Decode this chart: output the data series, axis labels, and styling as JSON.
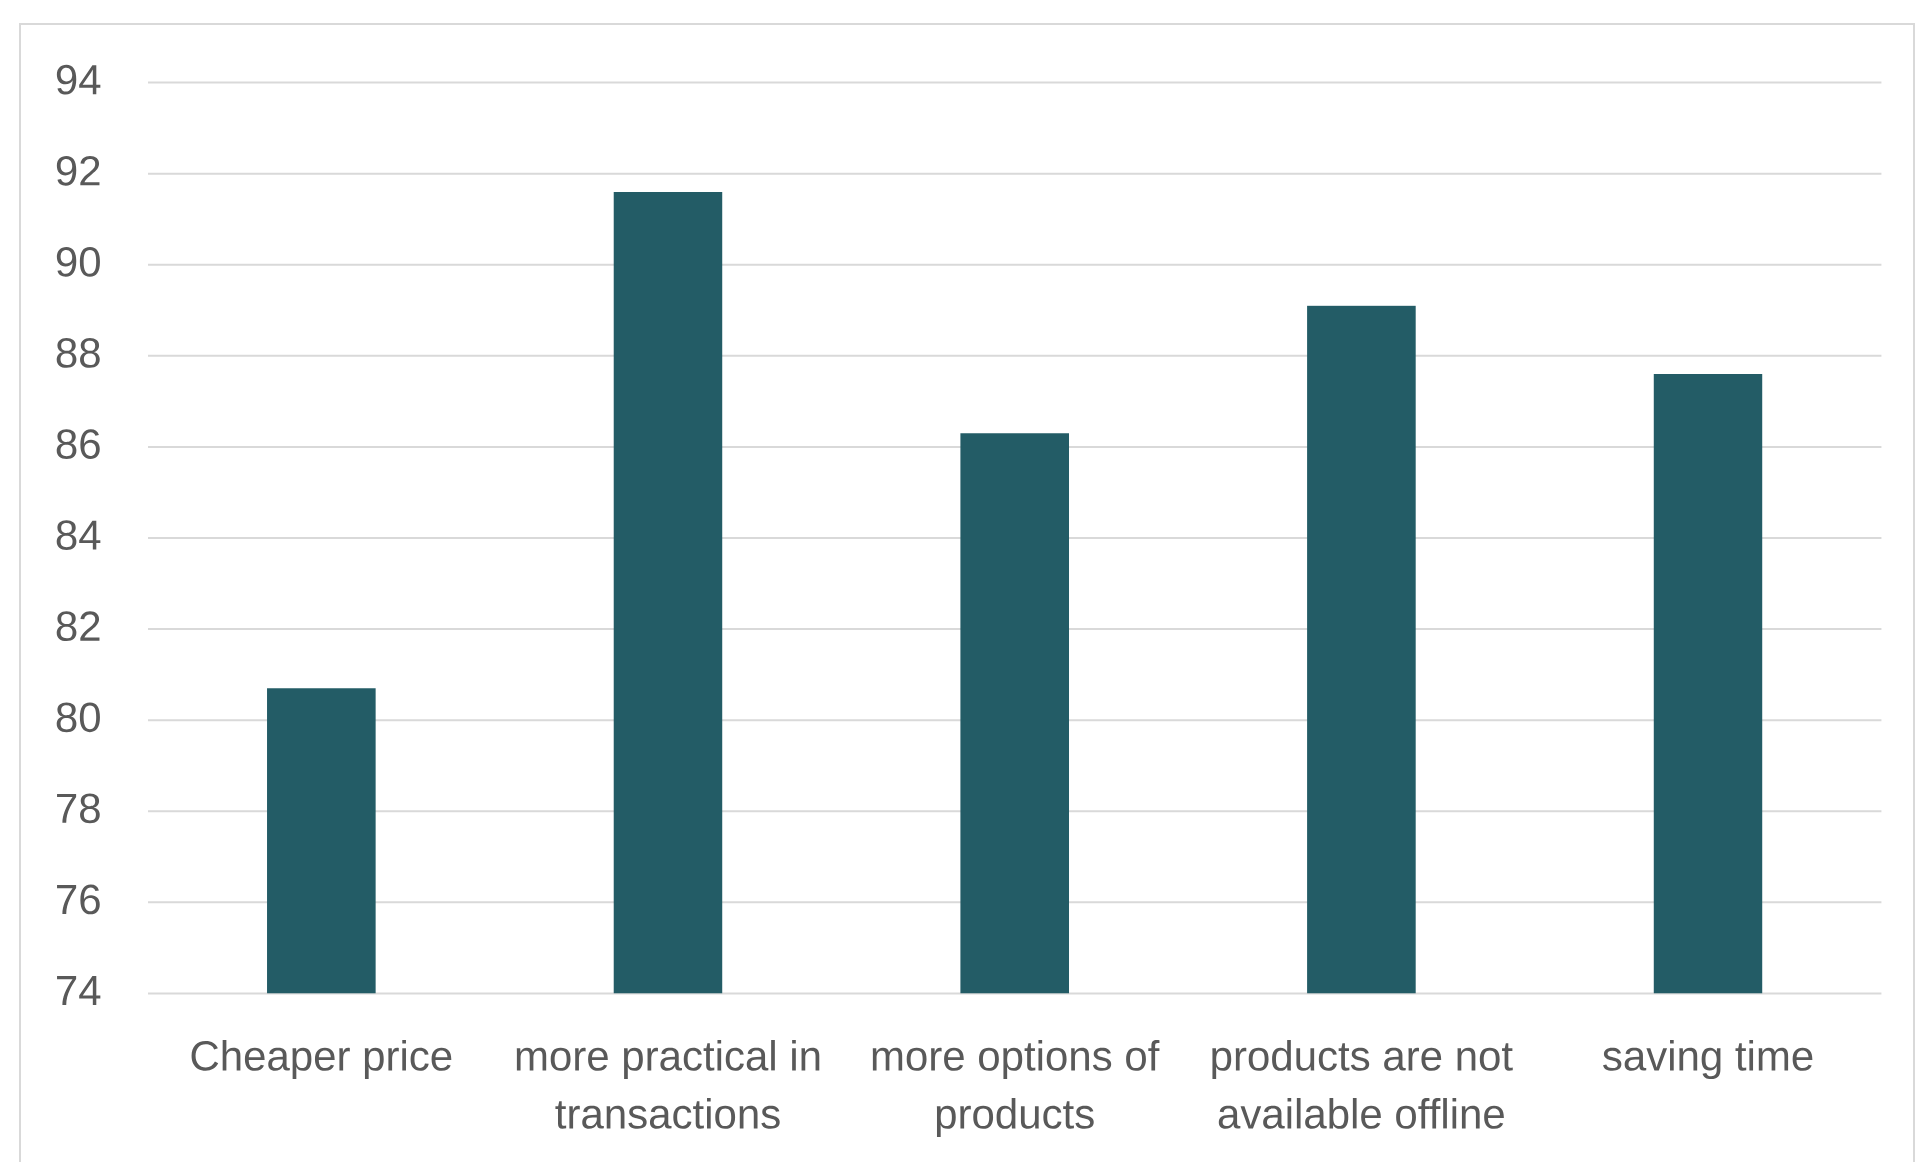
{
  "chart_data": {
    "type": "bar",
    "categories": [
      "Cheaper price",
      "more practical in transactions",
      "more options of products",
      "products are not available offline",
      "saving time"
    ],
    "values": [
      80.7,
      91.6,
      86.3,
      89.1,
      87.6
    ],
    "color": "#235c66",
    "ylim": [
      74,
      94
    ],
    "yticks": [
      74,
      76,
      78,
      80,
      82,
      84,
      86,
      88,
      90,
      92,
      94
    ],
    "grid": "y"
  }
}
